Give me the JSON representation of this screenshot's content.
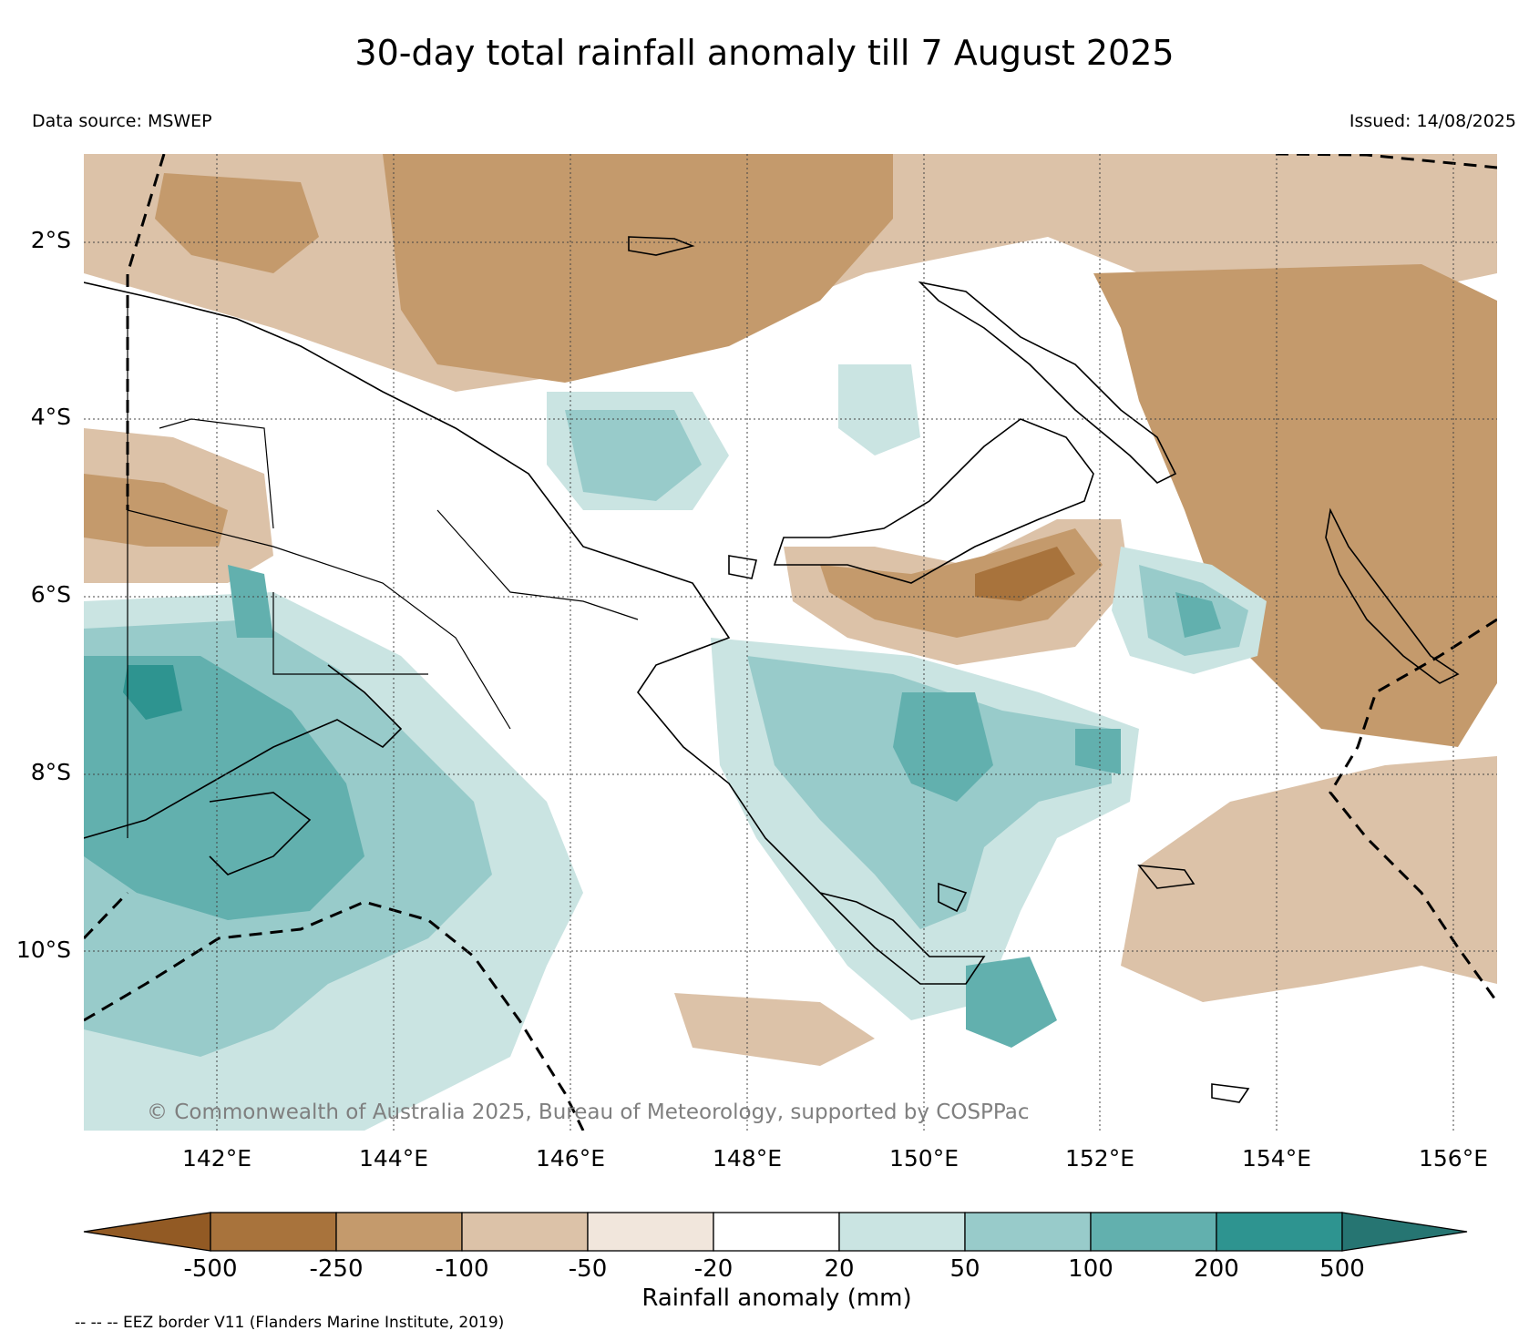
{
  "title": "30-day total rainfall anomaly till 7 August 2025",
  "data_source": "Data source: MSWEP",
  "issued": "Issued: 14/08/2025",
  "copyright": "© Commonwealth of Australia 2025, Bureau of Meteorology, supported by COSPPac",
  "lat_labels": [
    "2°S",
    "4°S",
    "6°S",
    "8°S",
    "10°S"
  ],
  "lon_labels": [
    "142°E",
    "144°E",
    "146°E",
    "148°E",
    "150°E",
    "152°E",
    "154°E",
    "156°E"
  ],
  "colorbar": {
    "title": "Rainfall anomaly (mm)",
    "ticks": [
      "-500",
      "-250",
      "-100",
      "-50",
      "-20",
      "20",
      "50",
      "100",
      "200",
      "500"
    ],
    "colors": {
      "under": "#925a24",
      "c1": "#a8733c",
      "c2": "#c49a6c",
      "c3": "#dcc2a8",
      "c4": "#f1e6dc",
      "c5": "#ffffff",
      "c6": "#cae4e2",
      "c7": "#98cbca",
      "c8": "#62b0ae",
      "c9": "#2e9490",
      "over": "#267572"
    }
  },
  "eez_note": "-- -- -- EEZ border V11 (Flanders Marine Institute, 2019)"
}
